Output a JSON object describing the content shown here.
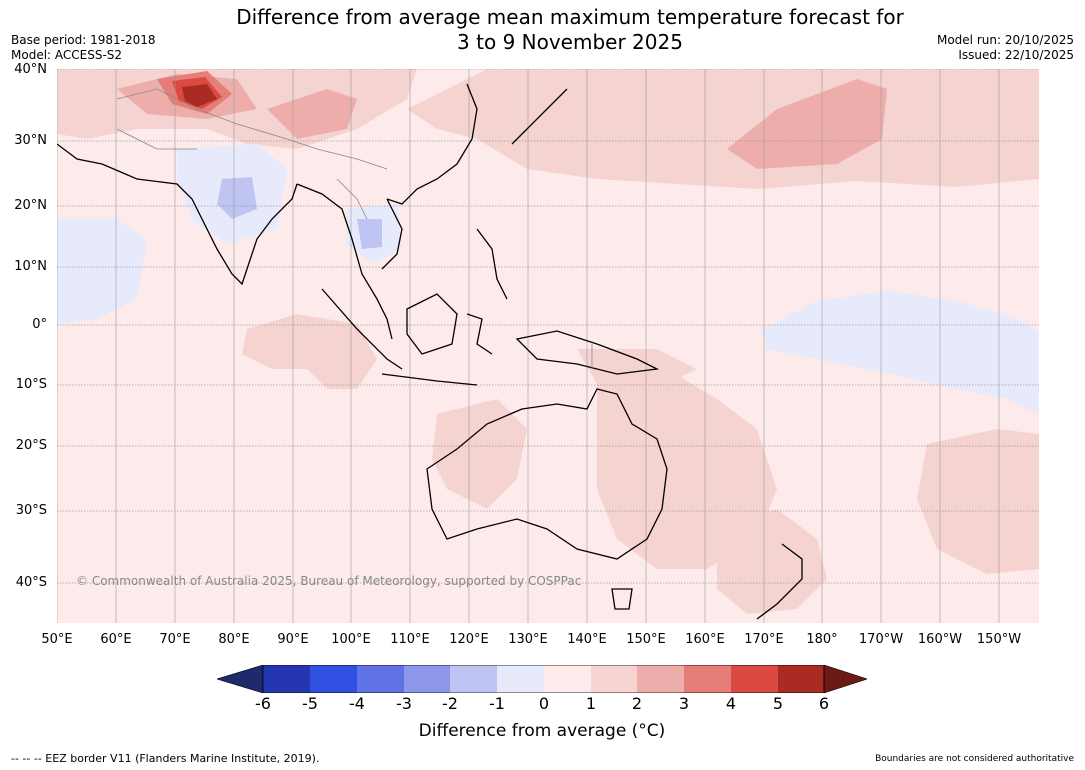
{
  "title": {
    "line1": "Difference from average mean maximum temperature forecast for",
    "line2": "3 to 9 November 2025"
  },
  "meta_left": {
    "base_period": "Base period: 1981-2018",
    "model": "Model: ACCESS-S2"
  },
  "meta_right": {
    "model_run": "Model run: 20/10/2025",
    "issued": "Issued: 22/10/2025"
  },
  "lat_labels": [
    "40°N",
    "30°N",
    "20°N",
    "10°N",
    "0°",
    "10°S",
    "20°S",
    "30°S",
    "40°S"
  ],
  "lon_labels": [
    "50°E",
    "60°E",
    "70°E",
    "80°E",
    "90°E",
    "100°E",
    "110°E",
    "120°E",
    "130°E",
    "140°E",
    "150°E",
    "160°E",
    "170°E",
    "180°",
    "170°W",
    "160°W",
    "150°W"
  ],
  "copyright": "© Commonwealth of Australia 2025, Bureau of Meteorology, supported by COSPPac",
  "colorbar": {
    "ticks": [
      "-6",
      "-5",
      "-4",
      "-3",
      "-2",
      "-1",
      "0",
      "1",
      "2",
      "3",
      "4",
      "5",
      "6"
    ],
    "label": "Difference from average (°C)",
    "colors": {
      "below_min": "#1f2a6b",
      "c1": "#2437b0",
      "c2": "#2f50e0",
      "c3": "#5f72e6",
      "c4": "#8c97ea",
      "c5": "#bfc4f2",
      "c6": "#e7eafb",
      "c7": "#fcebea",
      "c8": "#f5d3d1",
      "c9": "#edaeab",
      "c10": "#e47e77",
      "c11": "#da4a40",
      "c12": "#a92b24",
      "above_max": "#6d1a16"
    }
  },
  "footer": {
    "eez": "--  --  -- EEZ border V11 (Flanders Marine Institute, 2019).",
    "boundaries": "Boundaries are not considered authoritative"
  }
}
